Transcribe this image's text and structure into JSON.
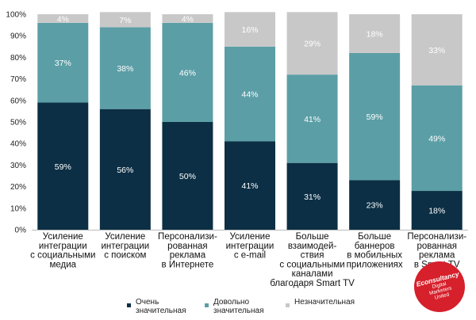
{
  "chart_data": {
    "type": "bar",
    "stacked": true,
    "percent": true,
    "ylim": [
      0,
      100
    ],
    "yticks": [
      "0%",
      "10%",
      "20%",
      "30%",
      "40%",
      "50%",
      "60%",
      "70%",
      "80%",
      "90%",
      "100%"
    ],
    "grid": false,
    "legend_position": "bottom",
    "categories": [
      "Усиление\nинтеграции\nс социальными\nмедиа",
      "Усиление\nинтеграции\nс поиском",
      "Персонализи-\nрованная\nреклама\nв Интернете",
      "Усиление\nинтеграции\nс e-mail",
      "Больше\nвзаимодей-\nствия\nс социальными\nканалами\nблагодаря Smart TV",
      "Больше\nбаннеров\nв мобильных\nприложениях",
      "Персонализи-\nрованная\nреклама\nв Smart TV"
    ],
    "series": [
      {
        "name": "Очень\nзначительная",
        "color": "#0c2f45",
        "label_color": "#ffffff",
        "values": [
          59,
          56,
          50,
          41,
          31,
          23,
          18
        ]
      },
      {
        "name": "Довольно\nзначительная",
        "color": "#5b9ea6",
        "label_color": "#ffffff",
        "values": [
          37,
          38,
          46,
          44,
          41,
          59,
          49
        ]
      },
      {
        "name": "Незначительная",
        "color": "#c8c8c8",
        "label_color": "#ffffff",
        "values": [
          4,
          7,
          4,
          16,
          29,
          18,
          33
        ]
      }
    ],
    "data_labels": [
      [
        "59%",
        "56%",
        "50%",
        "41%",
        "31%",
        "23%",
        "18%"
      ],
      [
        "37%",
        "38%",
        "46%",
        "44%",
        "41%",
        "59%",
        "49%"
      ],
      [
        "4%",
        "7%",
        "4%",
        "16%",
        "29%",
        "18%",
        "33%"
      ]
    ]
  },
  "badge": {
    "main": "Econsultancy",
    "sub": "Digital\nMarketers\nUnited"
  }
}
